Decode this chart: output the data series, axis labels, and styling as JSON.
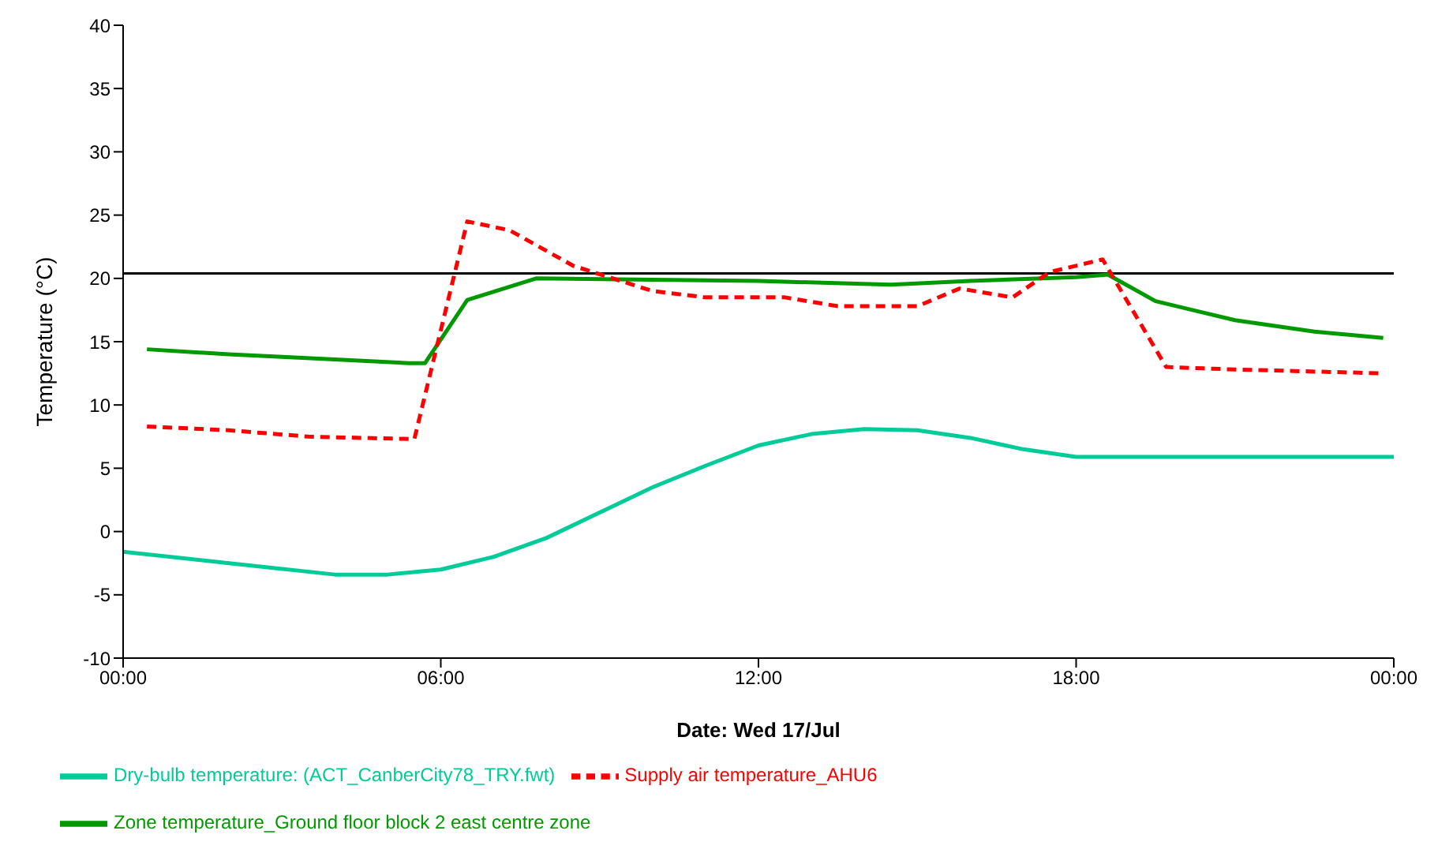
{
  "chart_data": {
    "type": "line",
    "xlabel": "Date: Wed 17/Jul",
    "ylabel": "Temperature (°C)",
    "xlim": [
      0,
      24
    ],
    "xticks": [
      {
        "value": 0,
        "label": "00:00"
      },
      {
        "value": 6,
        "label": "06:00"
      },
      {
        "value": 12,
        "label": "12:00"
      },
      {
        "value": 18,
        "label": "18:00"
      },
      {
        "value": 24,
        "label": "00:00"
      }
    ],
    "ylim": [
      -10,
      40
    ],
    "yticks": [
      -10,
      -5,
      0,
      5,
      10,
      15,
      20,
      25,
      30,
      35,
      40
    ],
    "grid": false,
    "legend": "bottom",
    "marker": "none",
    "ref_lines": [
      {
        "axis": "y",
        "value": 20.4,
        "color": "#000000"
      }
    ],
    "series": [
      {
        "name": "Zone temperature_Ground floor block 2 east centre zone",
        "color": "#009900",
        "line_style": "solid",
        "x": [
          0.45,
          2,
          4,
          5.4,
          5.7,
          6.5,
          7.8,
          12,
          14.5,
          16,
          18,
          18.6,
          19.5,
          21,
          22.5,
          23.8
        ],
        "values": [
          14.4,
          14,
          13.6,
          13.3,
          13.3,
          18.3,
          20,
          19.8,
          19.5,
          19.8,
          20.1,
          20.3,
          18.2,
          16.7,
          15.8,
          15.3
        ]
      },
      {
        "name": "Supply air temperature_AHU6",
        "color": "#ff0000",
        "line_style": "dashed",
        "x": [
          0.45,
          2,
          3.5,
          5.5,
          6.5,
          7.3,
          8.5,
          10,
          11,
          12.5,
          13.5,
          15,
          15.8,
          16.8,
          17.5,
          18.5,
          19.7,
          21,
          23.8
        ],
        "values": [
          8.3,
          8,
          7.5,
          7.3,
          24.5,
          23.8,
          21,
          19,
          18.5,
          18.5,
          17.8,
          17.8,
          19.2,
          18.5,
          20.5,
          21.5,
          13,
          12.8,
          12.5
        ]
      },
      {
        "name": "Dry-bulb temperature:  (ACT_CanberCity78_TRY.fwt)",
        "color": "#00cc99",
        "line_style": "solid",
        "x": [
          0,
          2,
          4,
          5,
          6,
          7,
          8,
          9,
          10,
          11,
          12,
          13,
          14,
          15,
          16,
          17,
          18,
          21,
          24
        ],
        "values": [
          -1.6,
          -2.5,
          -3.4,
          -3.4,
          -3,
          -2,
          -0.5,
          1.5,
          3.5,
          5.2,
          6.8,
          7.7,
          8.1,
          8,
          7.4,
          6.5,
          5.9,
          5.9,
          5.9
        ]
      }
    ]
  }
}
